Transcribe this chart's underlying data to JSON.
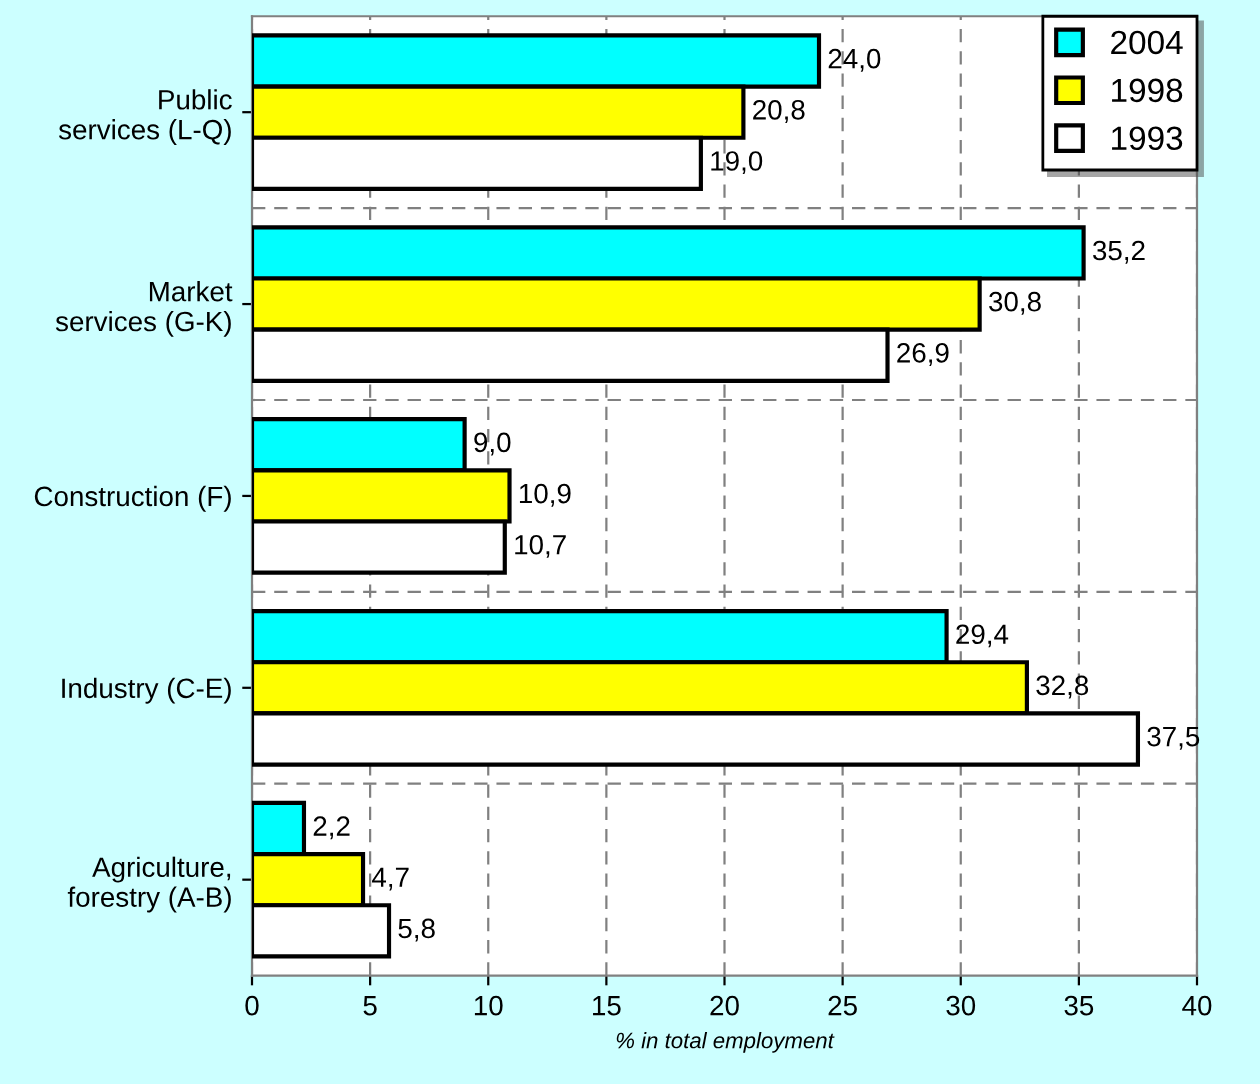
{
  "chart_data": {
    "type": "bar",
    "orientation": "horizontal",
    "xlabel": "% in total employment",
    "categories": [
      "Public\nservices (L-Q)",
      "Market\nservices (G-K)",
      "Construction (F)",
      "Industry (C-E)",
      "Agriculture,\nforestry (A-B)"
    ],
    "series": [
      {
        "name": "2004",
        "color": "#00ffff",
        "values": [
          24.0,
          35.2,
          9.0,
          29.4,
          2.2
        ],
        "value_labels": [
          "24,0",
          "35,2",
          "9,0",
          "29,4",
          "2,2"
        ]
      },
      {
        "name": "1998",
        "color": "#ffff00",
        "values": [
          20.8,
          30.8,
          10.9,
          32.8,
          4.7
        ],
        "value_labels": [
          "20,8",
          "30,8",
          "10,9",
          "32,8",
          "4,7"
        ]
      },
      {
        "name": "1993",
        "color": "#ffffff",
        "values": [
          19.0,
          26.9,
          10.7,
          37.5,
          5.8
        ],
        "value_labels": [
          "19,0",
          "26,9",
          "10,7",
          "37,5",
          "5,8"
        ]
      }
    ],
    "xlim": [
      0,
      40
    ],
    "xticks": [
      0,
      5,
      10,
      15,
      20,
      25,
      30,
      35,
      40
    ],
    "grid": true,
    "legend": "top right"
  }
}
